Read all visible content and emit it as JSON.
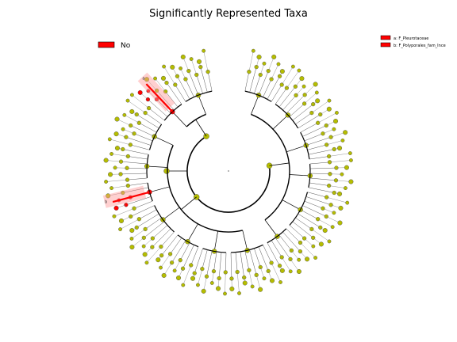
{
  "chart_data": {
    "type": "cladogram",
    "title": "Significantly Represented Taxa",
    "class_legend": [
      {
        "label": "No",
        "color": "#ff0000"
      }
    ],
    "clade_legend": [
      {
        "letter": "a",
        "label": "a: F_Pleurotaceae",
        "color": "#ff0000"
      },
      {
        "letter": "b",
        "label": "b: F_Polyporales_fam_Ince",
        "color": "#ff0000"
      }
    ],
    "highlighted_clades": [
      "a",
      "b"
    ],
    "node_color": "#b5bd00",
    "highlight_color": "#ff0000",
    "groups": [
      {
        "leaves": 7,
        "highlight": false
      },
      {
        "leaves": 8,
        "highlight": false
      },
      {
        "leaves": 7,
        "highlight": false
      },
      {
        "leaves": 6,
        "highlight": false
      },
      {
        "leaves": 9,
        "highlight": false
      },
      {
        "leaves": 6,
        "highlight": false
      },
      {
        "leaves": 8,
        "highlight": false
      },
      {
        "leaves": 6,
        "highlight": false
      },
      {
        "leaves": 6,
        "highlight": false
      },
      {
        "leaves": 8,
        "highlight": false
      },
      {
        "leaves": 5,
        "highlight": "b"
      },
      {
        "leaves": 6,
        "highlight": false
      },
      {
        "leaves": 7,
        "highlight": false
      },
      {
        "leaves": 6,
        "highlight": "a"
      },
      {
        "leaves": 7,
        "highlight": false
      }
    ]
  }
}
